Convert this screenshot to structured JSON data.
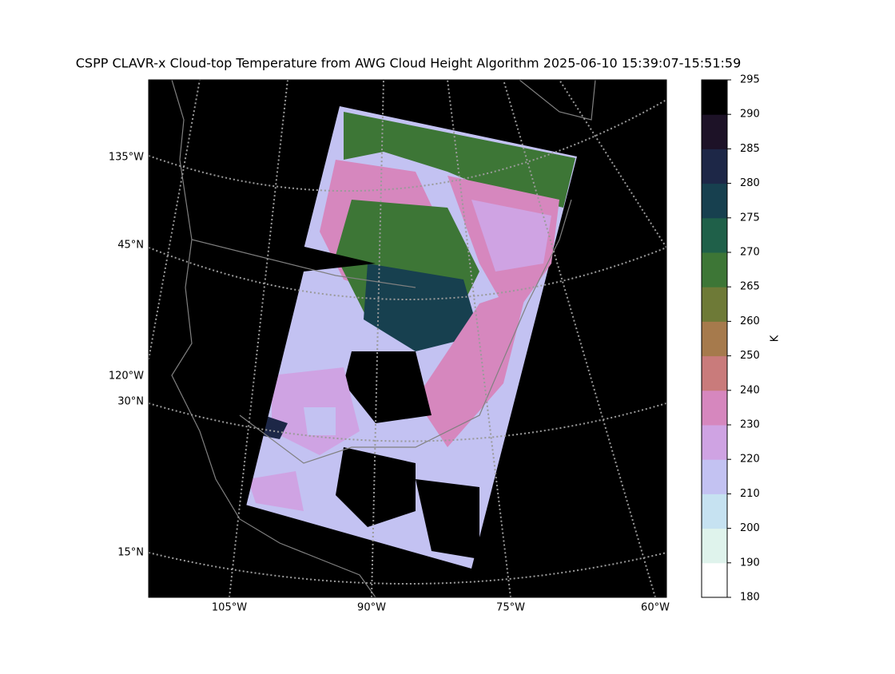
{
  "title": "CSPP CLAVR-x Cloud-top Temperature from AWG Cloud Height Algorithm 2025-06-10 15:39:07-15:51:59",
  "map": {
    "lat_labels": [
      "135°W",
      "45°N",
      "120°W",
      "30°N",
      "15°N"
    ],
    "lon_labels": [
      "105°W",
      "90°W",
      "75°W",
      "60°W"
    ]
  },
  "colorbar": {
    "label": "K",
    "ticks": [
      180,
      190,
      200,
      210,
      220,
      230,
      240,
      250,
      260,
      265,
      270,
      275,
      280,
      285,
      290,
      295
    ],
    "colors": [
      "#ffffff",
      "#dff3ec",
      "#c6e2f1",
      "#c3c2f2",
      "#cfa3e3",
      "#d687be",
      "#c97b7b",
      "#a67a4c",
      "#6e7a37",
      "#3d7636",
      "#1f6049",
      "#17404f",
      "#1d2747",
      "#1d1227",
      "#000000"
    ]
  }
}
